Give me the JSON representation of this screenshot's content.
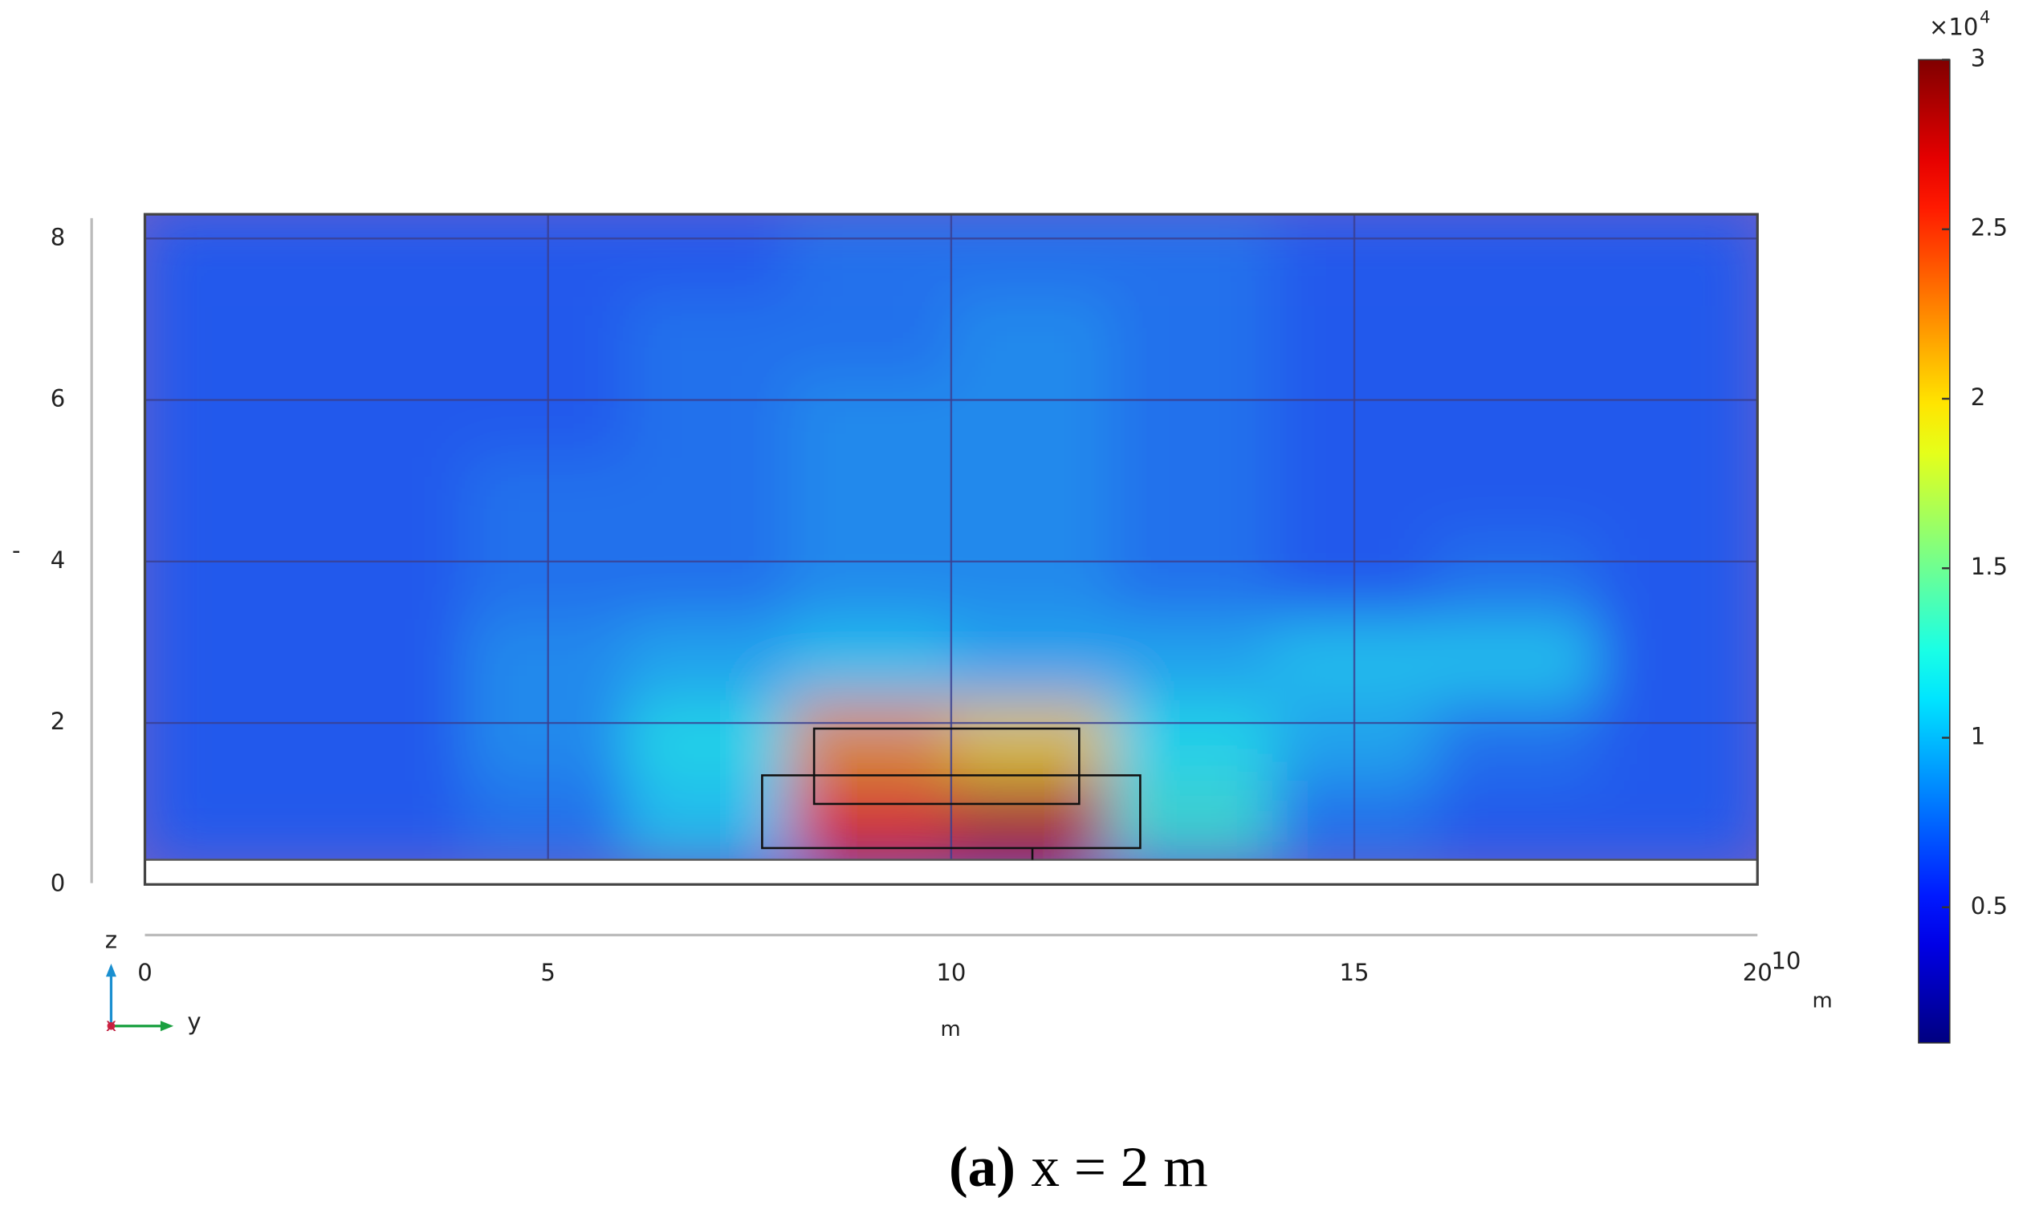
{
  "chart_data": {
    "type": "heatmap",
    "colormap": "jet",
    "x": [
      0,
      2,
      4,
      6,
      8,
      10,
      12,
      14,
      16,
      18,
      20
    ],
    "y": [
      0.3,
      1.3,
      2.3,
      3.3,
      4.3,
      5.3,
      6.3,
      7.3,
      8.3
    ],
    "z": [
      [
        0.7,
        0.7,
        0.8,
        1.1,
        2.6,
        2.8,
        1.3,
        0.8,
        0.7,
        0.7
      ],
      [
        0.7,
        0.7,
        0.9,
        1.2,
        2.2,
        2.0,
        1.2,
        1.0,
        0.8,
        0.7
      ],
      [
        0.7,
        0.7,
        0.9,
        1.0,
        1.1,
        1.0,
        1.0,
        1.1,
        1.1,
        0.7
      ],
      [
        0.7,
        0.7,
        0.8,
        0.8,
        0.9,
        0.9,
        0.8,
        0.7,
        0.8,
        0.7
      ],
      [
        0.7,
        0.7,
        0.8,
        0.8,
        0.9,
        0.9,
        0.8,
        0.7,
        0.7,
        0.7
      ],
      [
        0.7,
        0.7,
        0.7,
        0.8,
        0.9,
        0.9,
        0.8,
        0.7,
        0.7,
        0.7
      ],
      [
        0.7,
        0.7,
        0.7,
        0.8,
        0.8,
        0.9,
        0.8,
        0.7,
        0.7,
        0.7
      ],
      [
        0.7,
        0.7,
        0.7,
        0.7,
        0.8,
        0.8,
        0.8,
        0.7,
        0.7,
        0.7
      ]
    ],
    "xlim": [
      0,
      20
    ],
    "xticks": [
      0,
      5,
      10,
      15,
      20
    ],
    "ylim": [
      0,
      8.3
    ],
    "yticks": [
      0,
      2,
      4,
      6,
      8
    ],
    "zlim": [
      0.1,
      3
    ],
    "zticks": [
      0.5,
      1,
      1.5,
      2,
      2.5,
      3
    ],
    "x_label": "m",
    "y_label": "-",
    "x_exponent": "10",
    "x_exponent_unit": "m",
    "colorbar_multiplier": "×10",
    "colorbar_exponent": "4",
    "axis_triad": {
      "up": "z",
      "right": "y",
      "out": "x"
    },
    "caption": {
      "panel": "(a)",
      "text": "x = 2 m"
    },
    "grid": true
  }
}
